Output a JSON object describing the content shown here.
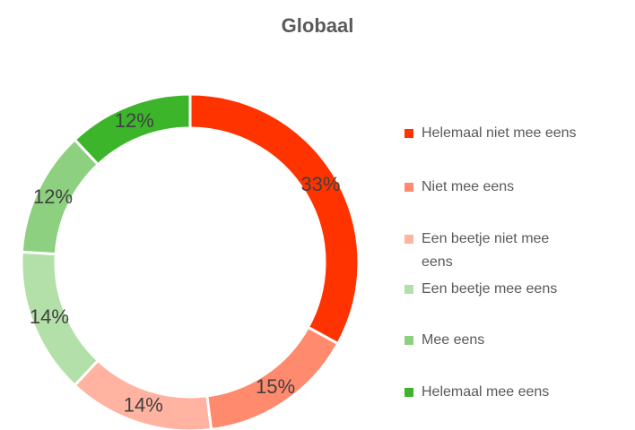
{
  "chart_data": {
    "type": "donut",
    "title": "Globaal",
    "categories": [
      "Helemaal niet mee eens",
      "Niet mee eens",
      "Een beetje niet mee eens",
      "Een beetje mee eens",
      "Mee eens",
      "Helemaal mee eens"
    ],
    "values": [
      33,
      15,
      14,
      14,
      12,
      12
    ],
    "colors": [
      "#ff3300",
      "#ff8a6e",
      "#ffb3a0",
      "#b3e0a8",
      "#8dd07f",
      "#3cb52b"
    ],
    "legend": "right"
  }
}
